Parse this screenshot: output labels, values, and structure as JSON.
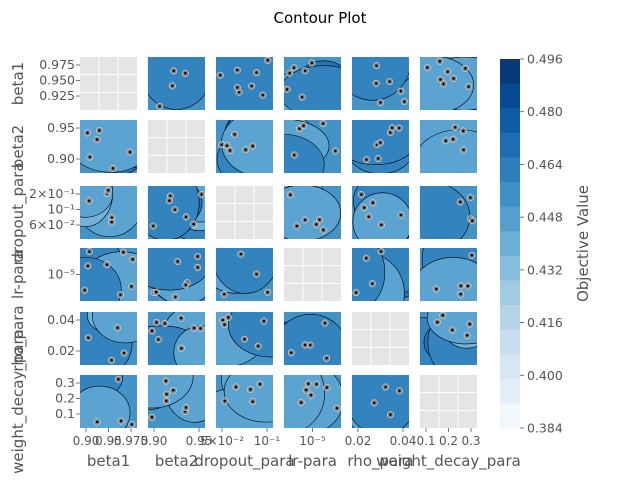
{
  "chart_data": {
    "type": "contour",
    "title": "Contour Plot",
    "params": [
      "beta1",
      "beta2",
      "dropout_para",
      "lr-para",
      "rho_para",
      "weight_decay_para"
    ],
    "x_tick_labels": [
      [
        "0.90",
        "0.95",
        "0.975"
      ],
      [
        "0.90",
        "0.95"
      ],
      [
        "5×10⁻²",
        "10⁻¹"
      ],
      [
        "10⁻⁵"
      ],
      [
        "0.02",
        "0.04"
      ],
      [
        "0.1",
        "0.2",
        "0.3"
      ]
    ],
    "y_tick_labels": [
      [
        "0.975",
        "0.950",
        "0.925"
      ],
      [
        "0.95",
        "0.90"
      ],
      [
        "2×10⁻¹",
        "10⁻¹",
        "6×10⁻²"
      ],
      [
        "10⁻⁵"
      ],
      [
        "0.04",
        "0.02"
      ],
      [
        "0.3",
        "0.2",
        "0.1"
      ]
    ],
    "colorbar": {
      "label": "Objective Value",
      "min": 0.384,
      "max": 0.496,
      "ticks": [
        "0.496",
        "0.480",
        "0.464",
        "0.448",
        "0.432",
        "0.416",
        "0.400",
        "0.384"
      ],
      "colormap": "Blues"
    },
    "grid": true,
    "diagonal_empty": true,
    "trial_marker_color": "#808080"
  }
}
